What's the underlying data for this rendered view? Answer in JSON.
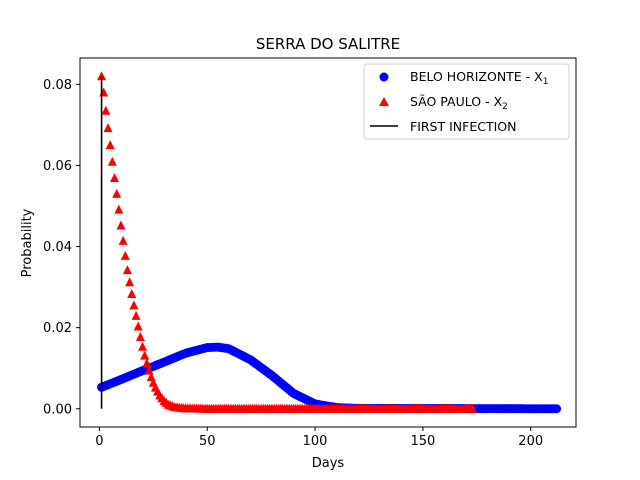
{
  "chart_data": {
    "type": "scatter",
    "title": "SERRA DO SALITRE",
    "xlabel": "Days",
    "ylabel": "Probability",
    "xlim": [
      -9,
      221
    ],
    "ylim": [
      -0.0045,
      0.0865
    ],
    "xticks": [
      0,
      50,
      100,
      150,
      200
    ],
    "xtick_labels": [
      "0",
      "50",
      "100",
      "150",
      "200"
    ],
    "yticks": [
      0.0,
      0.02,
      0.04,
      0.06,
      0.08
    ],
    "ytick_labels": [
      "0.00",
      "0.02",
      "0.04",
      "0.06",
      "0.08"
    ],
    "grid": false,
    "legend_position": "top-right",
    "series": [
      {
        "name": "BELO HORIZONTE - X",
        "name_subscript": "1",
        "marker": "circle",
        "color": "#0000ff",
        "x": [
          1,
          10,
          20,
          30,
          40,
          50,
          55,
          60,
          70,
          80,
          90,
          100,
          110,
          120,
          212
        ],
        "y": [
          0.0053,
          0.0072,
          0.0094,
          0.0115,
          0.0137,
          0.0151,
          0.0152,
          0.0148,
          0.0121,
          0.0082,
          0.0038,
          0.0012,
          0.0003,
          0.0001,
          0.0
        ]
      },
      {
        "name": "SÃO PAULO - X",
        "name_subscript": "2",
        "marker": "triangle",
        "color": "#ff0000",
        "x": [
          1,
          2,
          3,
          4,
          5,
          6,
          7,
          8,
          9,
          10,
          11,
          12,
          13,
          14,
          15,
          16,
          17,
          18,
          19,
          20,
          21,
          22,
          23,
          24,
          25,
          26,
          28,
          30,
          32,
          35,
          40,
          50,
          60,
          173
        ],
        "y": [
          0.082,
          0.078,
          0.0735,
          0.0692,
          0.065,
          0.0609,
          0.0569,
          0.053,
          0.0491,
          0.0452,
          0.0414,
          0.0377,
          0.0342,
          0.0312,
          0.0283,
          0.0255,
          0.0229,
          0.0203,
          0.0177,
          0.0153,
          0.0131,
          0.0112,
          0.0094,
          0.0078,
          0.0064,
          0.0052,
          0.0033,
          0.0019,
          0.001,
          0.0004,
          0.0001,
          0.0,
          0.0,
          0.0
        ]
      },
      {
        "name": "FIRST INFECTION",
        "marker": "line",
        "color": "#000000",
        "x": [
          1,
          1
        ],
        "y": [
          0.0,
          0.082
        ]
      }
    ]
  }
}
